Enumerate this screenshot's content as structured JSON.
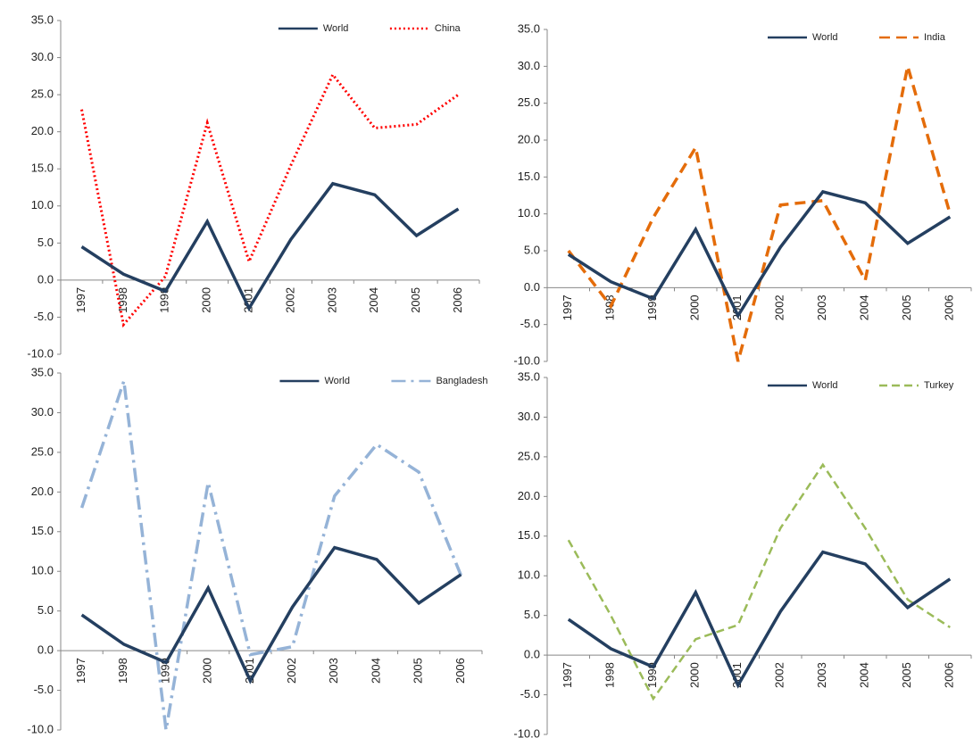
{
  "chart_data": [
    {
      "type": "line",
      "categories": [
        "1997",
        "1998",
        "1999",
        "2000",
        "2001",
        "2002",
        "2003",
        "2004",
        "2005",
        "2006"
      ],
      "series": [
        {
          "name": "World",
          "color": "#243f60",
          "style": "solid",
          "values": [
            4.5,
            0.8,
            -1.5,
            7.9,
            -3.8,
            5.5,
            13.0,
            11.5,
            6.0,
            9.6
          ]
        },
        {
          "name": "China",
          "color": "#ff0000",
          "style": "dotted",
          "values": [
            23.0,
            -6.0,
            0.5,
            21.2,
            2.5,
            15.5,
            27.7,
            20.5,
            21.0,
            25.0
          ]
        }
      ],
      "ylim": [
        -10,
        35
      ],
      "yticks": [
        {
          "value": -10,
          "label": "-10.0"
        },
        {
          "value": -5,
          "label": "-5.0"
        },
        {
          "value": 0,
          "label": "0.0"
        },
        {
          "value": 5,
          "label": "5.0"
        },
        {
          "value": 10,
          "label": "10.0"
        },
        {
          "value": 15,
          "label": "15.0"
        },
        {
          "value": 20,
          "label": "20.0"
        },
        {
          "value": 25,
          "label": "25.0"
        },
        {
          "value": 30,
          "label": "30.0"
        },
        {
          "value": 35,
          "label": "35.0"
        }
      ],
      "legend": "top-right"
    },
    {
      "type": "line",
      "categories": [
        "1997",
        "1998",
        "1999",
        "2000",
        "2001",
        "2002",
        "2003",
        "2004",
        "2005",
        "2006"
      ],
      "series": [
        {
          "name": "World",
          "color": "#243f60",
          "style": "solid",
          "values": [
            4.5,
            0.8,
            -1.5,
            7.9,
            -3.8,
            5.5,
            13.0,
            11.5,
            6.0,
            9.6
          ]
        },
        {
          "name": "India",
          "color": "#e46c0a",
          "style": "dashed",
          "values": [
            5.0,
            -2.5,
            9.5,
            19.0,
            -10.0,
            11.2,
            11.8,
            1.0,
            30.0,
            10.0
          ]
        }
      ],
      "ylim": [
        -10,
        35
      ],
      "yticks": [
        {
          "value": -10,
          "label": "-10.0"
        },
        {
          "value": -5,
          "label": "-5.0"
        },
        {
          "value": 0,
          "label": "0.0"
        },
        {
          "value": 5,
          "label": "5.0"
        },
        {
          "value": 10,
          "label": "10.0"
        },
        {
          "value": 15,
          "label": "15.0"
        },
        {
          "value": 20,
          "label": "20.0"
        },
        {
          "value": 25,
          "label": "25.0"
        },
        {
          "value": 30,
          "label": "30.0"
        },
        {
          "value": 35,
          "label": "35.0"
        }
      ],
      "legend": "top-right"
    },
    {
      "type": "line",
      "categories": [
        "1997",
        "1998",
        "1999",
        "2000",
        "2001",
        "2002",
        "2003",
        "2004",
        "2005",
        "2006"
      ],
      "series": [
        {
          "name": "World",
          "color": "#243f60",
          "style": "solid",
          "values": [
            4.5,
            0.8,
            -1.5,
            7.9,
            -3.8,
            5.5,
            13.0,
            11.5,
            6.0,
            9.6
          ]
        },
        {
          "name": "Bangladesh",
          "color": "#95b3d7",
          "style": "dashdot",
          "values": [
            18.0,
            34.0,
            -10.0,
            21.2,
            -0.5,
            0.5,
            19.5,
            26.0,
            22.5,
            9.5
          ]
        }
      ],
      "ylim": [
        -10,
        35
      ],
      "yticks": [
        {
          "value": -10,
          "label": "-10.0"
        },
        {
          "value": -5,
          "label": "-5.0"
        },
        {
          "value": 0,
          "label": "0.0"
        },
        {
          "value": 5,
          "label": "5.0"
        },
        {
          "value": 10,
          "label": "10.0"
        },
        {
          "value": 15,
          "label": "15.0"
        },
        {
          "value": 20,
          "label": "20.0"
        },
        {
          "value": 25,
          "label": "25.0"
        },
        {
          "value": 30,
          "label": "30.0"
        },
        {
          "value": 35,
          "label": "35.0"
        }
      ],
      "legend": "top-right"
    },
    {
      "type": "line",
      "categories": [
        "1997",
        "1998",
        "1999",
        "2000",
        "2001",
        "2002",
        "2003",
        "2004",
        "2005",
        "2006"
      ],
      "series": [
        {
          "name": "World",
          "color": "#243f60",
          "style": "solid",
          "values": [
            4.5,
            0.8,
            -1.5,
            7.9,
            -3.8,
            5.5,
            13.0,
            11.5,
            6.0,
            9.6
          ]
        },
        {
          "name": "Turkey",
          "color": "#9bbb59",
          "style": "dashed-thin",
          "values": [
            14.5,
            5.0,
            -5.5,
            2.0,
            3.8,
            16.0,
            24.0,
            16.0,
            7.0,
            3.5
          ]
        }
      ],
      "ylim": [
        -10,
        35
      ],
      "yticks": [
        {
          "value": -10,
          "label": "-10.0"
        },
        {
          "value": -5,
          "label": "-5.0"
        },
        {
          "value": 0,
          "label": "0.0"
        },
        {
          "value": 5,
          "label": "5.0"
        },
        {
          "value": 10,
          "label": "10.0"
        },
        {
          "value": 15,
          "label": "15.0"
        },
        {
          "value": 20,
          "label": "20.0"
        },
        {
          "value": 25,
          "label": "25.0"
        },
        {
          "value": 30,
          "label": "30.0"
        },
        {
          "value": 35,
          "label": "35.0"
        }
      ],
      "legend": "top-right"
    }
  ]
}
